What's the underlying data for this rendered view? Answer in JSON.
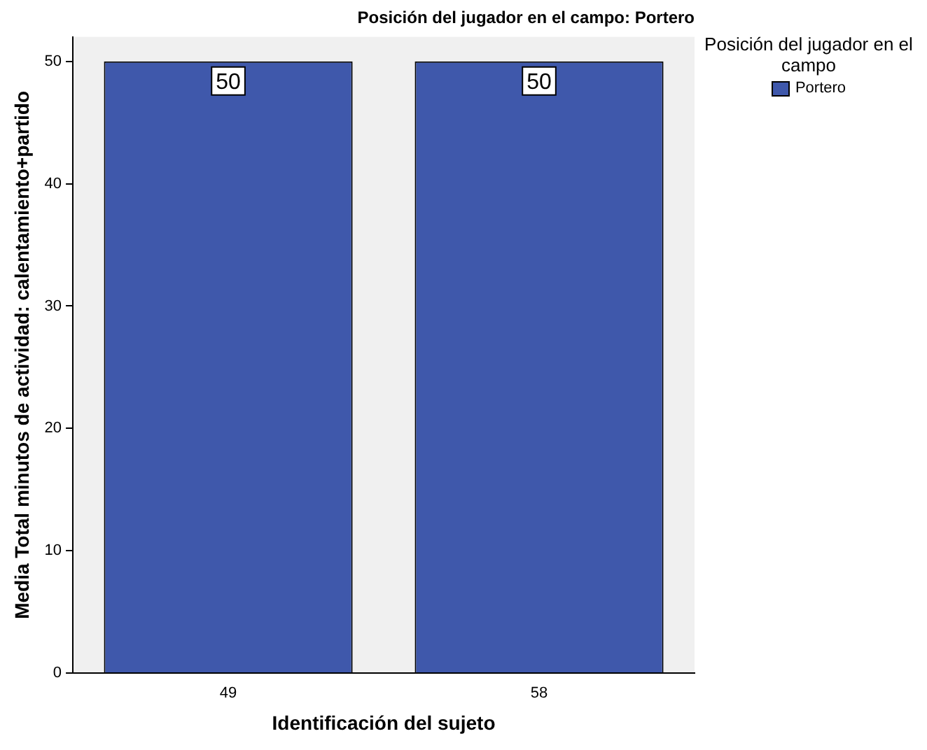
{
  "chart_data": {
    "type": "bar",
    "title": "Posición del jugador en el campo: Portero",
    "xlabel": "Identificación del sujeto",
    "ylabel": "Media Total minutos de actividad: calentamiento+partido",
    "categories": [
      "49",
      "58"
    ],
    "series": [
      {
        "name": "Portero",
        "color": "#3f58ab",
        "values": [
          50,
          50
        ]
      }
    ],
    "legend_title": "Posición del jugador en el campo",
    "legend": "right",
    "ylim": [
      0,
      52
    ],
    "yticks": [
      0,
      10,
      20,
      30,
      40,
      50
    ],
    "grid": false,
    "data_labels": true
  }
}
